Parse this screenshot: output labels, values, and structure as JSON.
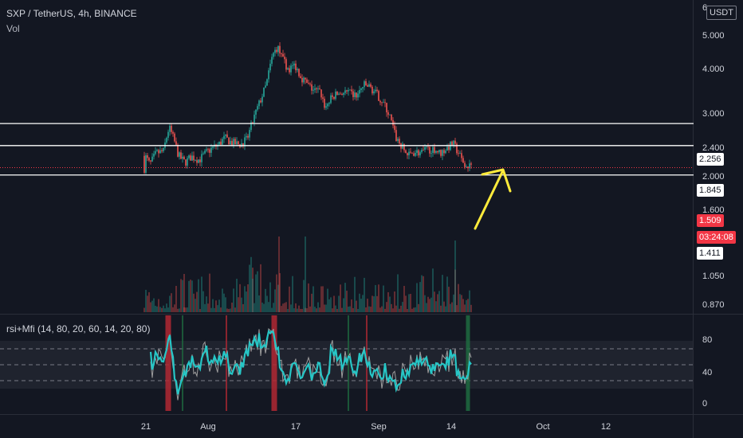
{
  "header": {
    "symbol_title": "SXP / TetherUS, 4h, BINANCE",
    "volume_label": "Vol",
    "indicator_label": "rsi+Mfi (14, 80, 20, 60, 14, 20, 80)"
  },
  "price_axis": {
    "currency_button": "USDT",
    "labels": [
      "6",
      "5.000",
      "4.000",
      "3.000",
      "2.400",
      "2.000",
      "1.600",
      "1.050",
      "0.870"
    ]
  },
  "horizontal_levels": [
    {
      "price": 2.256,
      "label": "2.256"
    },
    {
      "price": 1.845,
      "label": "1.845"
    },
    {
      "price": 1.411,
      "label": "1.411"
    }
  ],
  "current_price": {
    "label": "1.509",
    "countdown": "03:24:08"
  },
  "indicator_axis": {
    "labels": [
      "80",
      "40",
      "0"
    ]
  },
  "time_axis": {
    "labels": [
      "21",
      "Aug",
      "17",
      "Sep",
      "14",
      "Oct",
      "12"
    ]
  },
  "colors": {
    "background": "#131722",
    "up_candle": "#26a69a",
    "down_candle": "#ef5350",
    "current_price_tag": "#f23645",
    "arrow": "#ffeb3b",
    "rsi_line": "#26c6c6",
    "mfi_line": "#9e9e9e",
    "band_fill": "#2a2e39"
  }
}
